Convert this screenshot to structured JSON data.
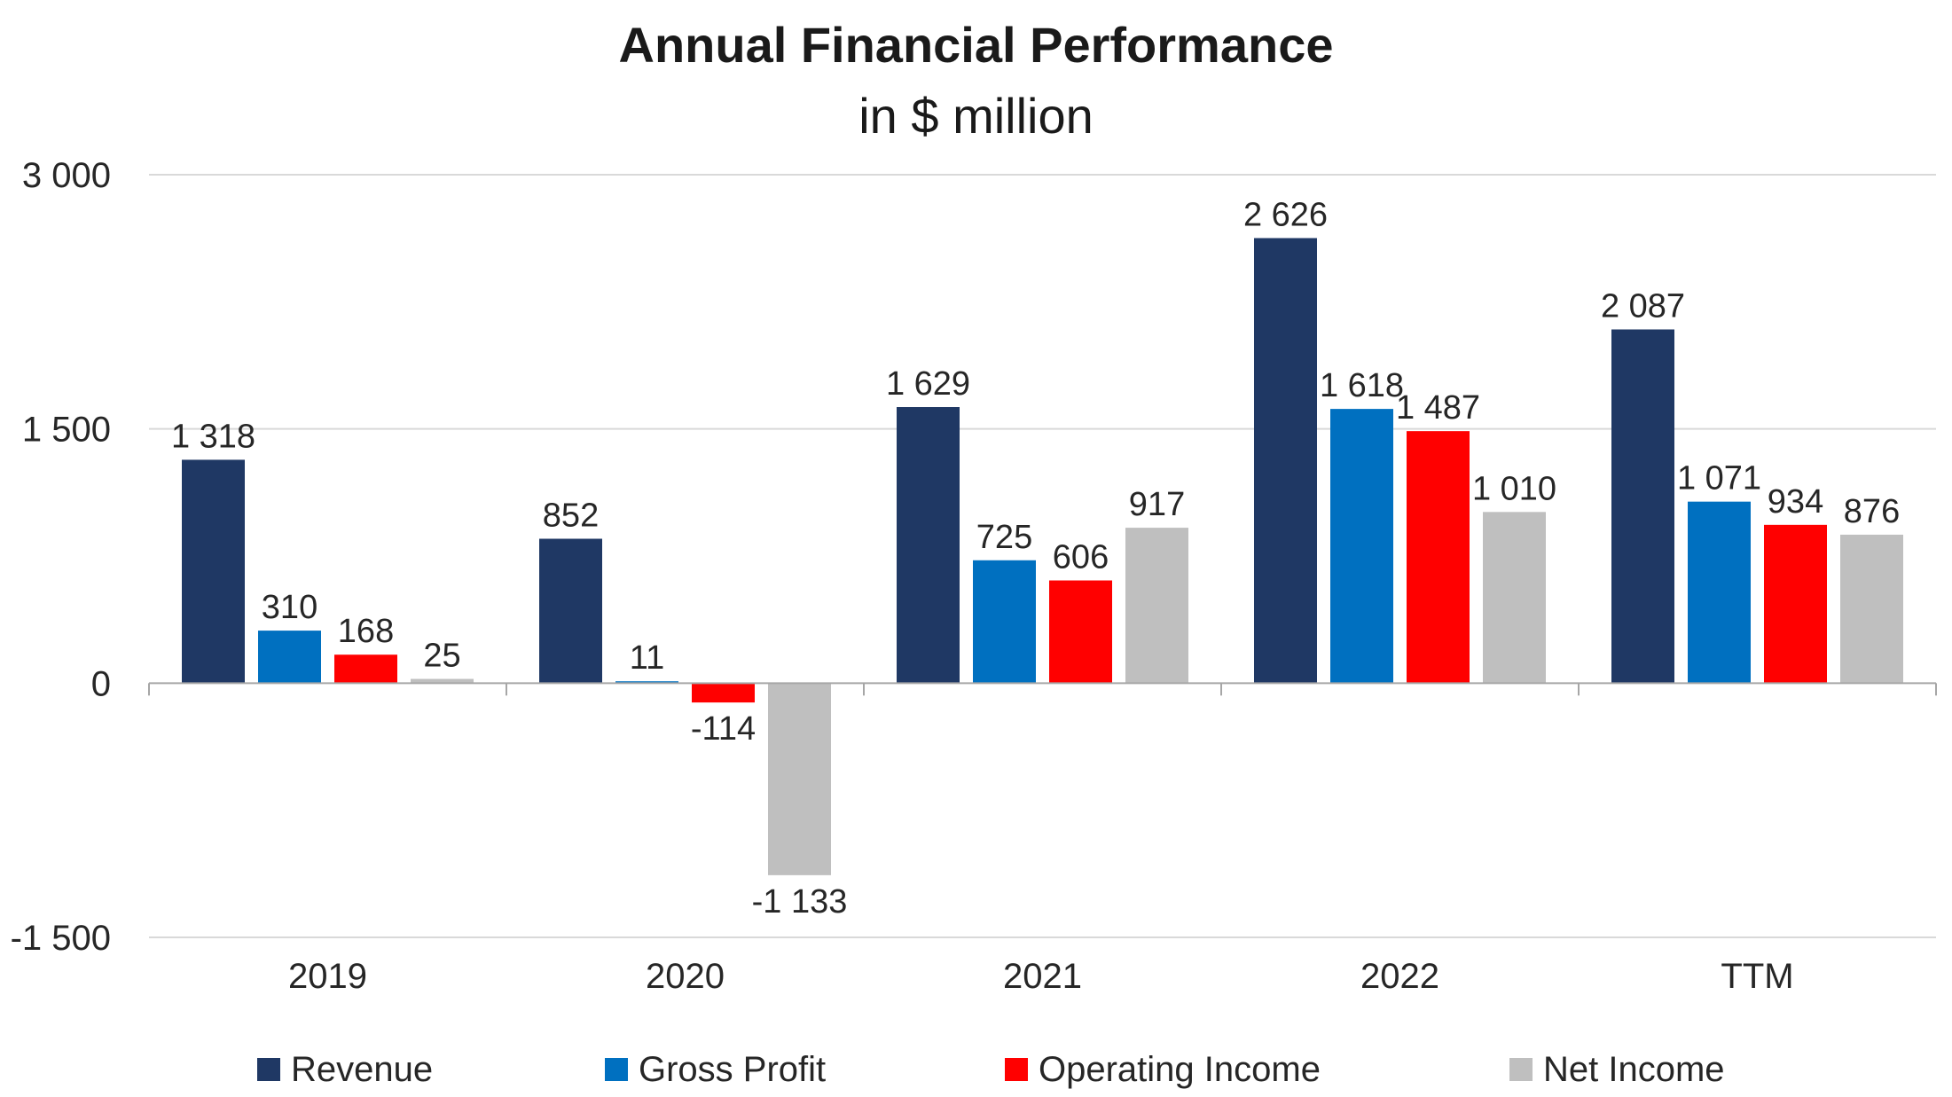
{
  "chart_data": {
    "type": "bar",
    "title": "Annual Financial Performance",
    "subtitle": "in $ million",
    "categories": [
      "2019",
      "2020",
      "2021",
      "2022",
      "TTM"
    ],
    "series": [
      {
        "name": "Revenue",
        "color": "#1f3864",
        "values": [
          1318,
          852,
          1629,
          2626,
          2087
        ],
        "labels": [
          "1 318",
          "852",
          "1 629",
          "2 626",
          "2 087"
        ]
      },
      {
        "name": "Gross Profit",
        "color": "#0070c0",
        "values": [
          310,
          11,
          725,
          1618,
          1071
        ],
        "labels": [
          "310",
          "11",
          "725",
          "1 618",
          "1 071"
        ]
      },
      {
        "name": "Operating Income",
        "color": "#ff0000",
        "values": [
          168,
          -114,
          606,
          1487,
          934
        ],
        "labels": [
          "168",
          "-114",
          "606",
          "1 487",
          "934"
        ]
      },
      {
        "name": "Net Income",
        "color": "#bfbfbf",
        "values": [
          25,
          -1133,
          917,
          1010,
          876
        ],
        "labels": [
          "25",
          "-1 133",
          "917",
          "1 010",
          "876"
        ]
      }
    ],
    "ylim": [
      -1500,
      3000
    ],
    "yticks": [
      -1500,
      0,
      1500,
      3000
    ],
    "ytick_labels": [
      "-1 500",
      "0",
      "1 500",
      "3 000"
    ],
    "grid": true,
    "legend_position": "bottom"
  }
}
